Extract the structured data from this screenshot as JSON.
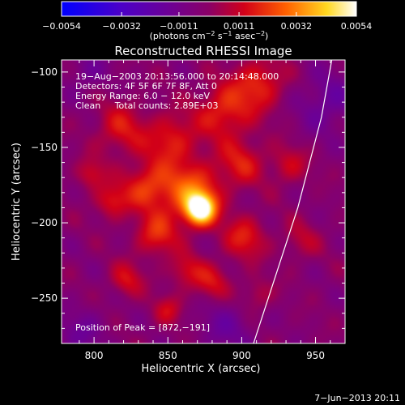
{
  "chart_data": {
    "type": "heatmap",
    "title": "Reconstructed RHESSI Image",
    "xlabel": "Heliocentric X (arcsec)",
    "ylabel": "Heliocentric Y (arcsec)",
    "xlim": [
      778,
      970
    ],
    "ylim": [
      -280,
      -92
    ],
    "x_ticks": [
      800,
      850,
      900,
      950
    ],
    "y_ticks": [
      -100,
      -150,
      -200,
      -250
    ],
    "x_tick_labels": [
      "800",
      "850",
      "900",
      "950"
    ],
    "y_tick_labels": [
      "−100",
      "−150",
      "−200",
      "−250"
    ],
    "colorbar": {
      "range": [
        -0.0054,
        0.0054
      ],
      "ticks": [
        -0.0054,
        -0.0032,
        -0.0011,
        0.0011,
        0.0032,
        0.0054
      ],
      "tick_labels": [
        "−0.0054",
        "−0.0032",
        "−0.0011",
        "0.0011",
        "0.0032",
        "0.0054"
      ],
      "label": "(photons cm",
      "label_exp1": "−2",
      "label_mid": " s",
      "label_exp2": "−1",
      "label_mid2": " asec",
      "label_exp3": "−2",
      "label_end": ")"
    },
    "info_lines": [
      "19−Aug−2003 20:13:56.000 to 20:14:48.000",
      "Detectors: 4F 5F 6F 7F 8F, Att 0",
      "Energy Range: 6.0 − 12.0 keV",
      "Clean     Total counts: 2.89E+03"
    ],
    "peak_text": "Position of Peak = [872,−191]",
    "peak": [
      872,
      -191
    ],
    "peak_value": 0.0054,
    "limb_curve": [
      [
        908,
        -280
      ],
      [
        918,
        -250
      ],
      [
        928,
        -220
      ],
      [
        938,
        -190
      ],
      [
        946,
        -160
      ],
      [
        954,
        -130
      ],
      [
        961,
        -92
      ]
    ],
    "sources": [
      {
        "x": 872,
        "y": -191,
        "amp": 1.0,
        "sigma": 7
      },
      {
        "x": 866,
        "y": -180,
        "amp": 0.55,
        "sigma": 14
      },
      {
        "x": 842,
        "y": -208,
        "amp": 0.38,
        "sigma": 10
      },
      {
        "x": 836,
        "y": -176,
        "amp": 0.42,
        "sigma": 11
      },
      {
        "x": 812,
        "y": -186,
        "amp": 0.34,
        "sigma": 8
      },
      {
        "x": 798,
        "y": -168,
        "amp": 0.28,
        "sigma": 7
      },
      {
        "x": 818,
        "y": -138,
        "amp": 0.32,
        "sigma": 12
      },
      {
        "x": 852,
        "y": -145,
        "amp": 0.36,
        "sigma": 12
      },
      {
        "x": 888,
        "y": -126,
        "amp": 0.4,
        "sigma": 13
      },
      {
        "x": 912,
        "y": -108,
        "amp": 0.38,
        "sigma": 12
      },
      {
        "x": 900,
        "y": -160,
        "amp": 0.32,
        "sigma": 11
      },
      {
        "x": 902,
        "y": -210,
        "amp": 0.36,
        "sigma": 10
      },
      {
        "x": 880,
        "y": -240,
        "amp": 0.3,
        "sigma": 9
      },
      {
        "x": 862,
        "y": -232,
        "amp": 0.28,
        "sigma": 8
      },
      {
        "x": 850,
        "y": -258,
        "amp": 0.26,
        "sigma": 7
      },
      {
        "x": 822,
        "y": -238,
        "amp": 0.3,
        "sigma": 8
      },
      {
        "x": 910,
        "y": -248,
        "amp": 0.22,
        "sigma": 8
      },
      {
        "x": 932,
        "y": -162,
        "amp": 0.26,
        "sigma": 9
      },
      {
        "x": 940,
        "y": -212,
        "amp": 0.2,
        "sigma": 9
      },
      {
        "x": 958,
        "y": -120,
        "amp": -0.25,
        "sigma": 14
      },
      {
        "x": 890,
        "y": -268,
        "amp": -0.2,
        "sigma": 14
      },
      {
        "x": 792,
        "y": -272,
        "amp": -0.18,
        "sigma": 12
      },
      {
        "x": 795,
        "y": -100,
        "amp": -0.18,
        "sigma": 10
      }
    ]
  },
  "footer": {
    "timestamp": "7−Jun−2013 20:11"
  }
}
